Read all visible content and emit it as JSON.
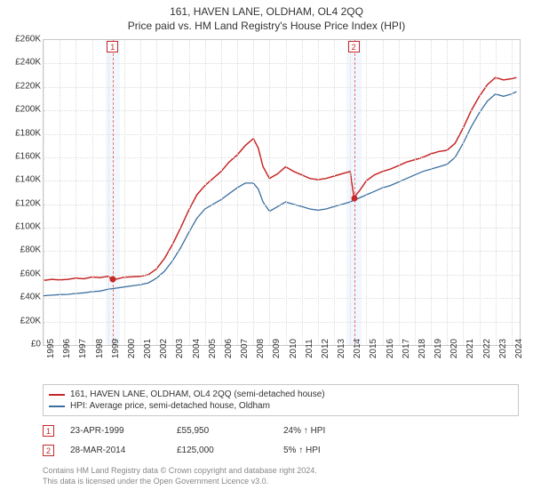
{
  "titles": {
    "main": "161, HAVEN LANE, OLDHAM, OL4 2QQ",
    "sub": "Price paid vs. HM Land Registry's House Price Index (HPI)"
  },
  "chart": {
    "type": "line",
    "background_color": "#ffffff",
    "grid_color": "#dcdcdc",
    "border_color": "#c8c8c8",
    "x": {
      "min": 1995,
      "max": 2024.5,
      "ticks": [
        1995,
        1996,
        1997,
        1998,
        1999,
        2000,
        2001,
        2002,
        2003,
        2004,
        2005,
        2006,
        2007,
        2008,
        2009,
        2010,
        2011,
        2012,
        2013,
        2014,
        2015,
        2016,
        2017,
        2018,
        2019,
        2020,
        2021,
        2022,
        2023,
        2024
      ],
      "label_fontsize": 10
    },
    "y": {
      "min": 0,
      "max": 260000,
      "ticks": [
        0,
        20000,
        40000,
        60000,
        80000,
        100000,
        120000,
        140000,
        160000,
        180000,
        200000,
        220000,
        240000,
        260000
      ],
      "tick_labels": [
        "£0",
        "£20K",
        "£40K",
        "£60K",
        "£80K",
        "£100K",
        "£120K",
        "£140K",
        "£160K",
        "£180K",
        "£200K",
        "£220K",
        "£240K",
        "£260K"
      ],
      "label_fontsize": 10
    },
    "series": [
      {
        "id": "price_paid",
        "label": "161, HAVEN LANE, OLDHAM, OL4 2QQ (semi-detached house)",
        "color": "#c62828",
        "line_width": 1.5,
        "data": [
          [
            1995,
            55000
          ],
          [
            1995.5,
            56000
          ],
          [
            1996,
            55500
          ],
          [
            1996.5,
            56000
          ],
          [
            1997,
            57000
          ],
          [
            1997.5,
            56500
          ],
          [
            1998,
            58000
          ],
          [
            1998.5,
            57500
          ],
          [
            1999,
            58500
          ],
          [
            1999.31,
            55950
          ],
          [
            1999.5,
            56200
          ],
          [
            2000,
            57800
          ],
          [
            2000.5,
            58200
          ],
          [
            2001,
            58500
          ],
          [
            2001.5,
            60000
          ],
          [
            2002,
            65000
          ],
          [
            2002.5,
            74000
          ],
          [
            2003,
            86000
          ],
          [
            2003.5,
            100000
          ],
          [
            2004,
            115000
          ],
          [
            2004.5,
            128000
          ],
          [
            2005,
            136000
          ],
          [
            2005.5,
            142000
          ],
          [
            2006,
            148000
          ],
          [
            2006.5,
            156000
          ],
          [
            2007,
            162000
          ],
          [
            2007.5,
            170000
          ],
          [
            2008,
            176000
          ],
          [
            2008.3,
            168000
          ],
          [
            2008.6,
            152000
          ],
          [
            2009,
            142000
          ],
          [
            2009.5,
            146000
          ],
          [
            2010,
            152000
          ],
          [
            2010.5,
            148000
          ],
          [
            2011,
            145000
          ],
          [
            2011.5,
            142000
          ],
          [
            2012,
            141000
          ],
          [
            2012.5,
            142000
          ],
          [
            2013,
            144000
          ],
          [
            2013.5,
            146000
          ],
          [
            2014,
            148000
          ],
          [
            2014.24,
            125000
          ],
          [
            2014.3,
            127000
          ],
          [
            2014.6,
            132000
          ],
          [
            2015,
            140000
          ],
          [
            2015.5,
            145000
          ],
          [
            2016,
            148000
          ],
          [
            2016.5,
            150000
          ],
          [
            2017,
            153000
          ],
          [
            2017.5,
            156000
          ],
          [
            2018,
            158000
          ],
          [
            2018.5,
            160000
          ],
          [
            2019,
            163000
          ],
          [
            2019.5,
            165000
          ],
          [
            2020,
            166000
          ],
          [
            2020.5,
            172000
          ],
          [
            2021,
            185000
          ],
          [
            2021.5,
            200000
          ],
          [
            2022,
            212000
          ],
          [
            2022.5,
            222000
          ],
          [
            2023,
            228000
          ],
          [
            2023.5,
            226000
          ],
          [
            2024,
            227000
          ],
          [
            2024.3,
            228000
          ]
        ]
      },
      {
        "id": "hpi",
        "label": "HPI: Average price, semi-detached house, Oldham",
        "color": "#3b6fa0",
        "line_width": 1.3,
        "data": [
          [
            1995,
            42000
          ],
          [
            1995.5,
            42500
          ],
          [
            1996,
            43000
          ],
          [
            1996.5,
            43200
          ],
          [
            1997,
            44000
          ],
          [
            1997.5,
            44500
          ],
          [
            1998,
            45500
          ],
          [
            1998.5,
            46000
          ],
          [
            1999,
            47500
          ],
          [
            1999.5,
            48500
          ],
          [
            2000,
            49500
          ],
          [
            2000.5,
            50500
          ],
          [
            2001,
            51500
          ],
          [
            2001.5,
            53000
          ],
          [
            2002,
            57000
          ],
          [
            2002.5,
            63000
          ],
          [
            2003,
            72000
          ],
          [
            2003.5,
            83000
          ],
          [
            2004,
            96000
          ],
          [
            2004.5,
            108000
          ],
          [
            2005,
            116000
          ],
          [
            2005.5,
            120000
          ],
          [
            2006,
            124000
          ],
          [
            2006.5,
            129000
          ],
          [
            2007,
            134000
          ],
          [
            2007.5,
            138000
          ],
          [
            2008,
            138000
          ],
          [
            2008.3,
            133000
          ],
          [
            2008.6,
            122000
          ],
          [
            2009,
            114000
          ],
          [
            2009.5,
            118000
          ],
          [
            2010,
            122000
          ],
          [
            2010.5,
            120000
          ],
          [
            2011,
            118000
          ],
          [
            2011.5,
            116000
          ],
          [
            2012,
            115000
          ],
          [
            2012.5,
            116000
          ],
          [
            2013,
            118000
          ],
          [
            2013.5,
            120000
          ],
          [
            2014,
            122000
          ],
          [
            2014.5,
            125000
          ],
          [
            2015,
            128000
          ],
          [
            2015.5,
            131000
          ],
          [
            2016,
            134000
          ],
          [
            2016.5,
            136000
          ],
          [
            2017,
            139000
          ],
          [
            2017.5,
            142000
          ],
          [
            2018,
            145000
          ],
          [
            2018.5,
            148000
          ],
          [
            2019,
            150000
          ],
          [
            2019.5,
            152000
          ],
          [
            2020,
            154000
          ],
          [
            2020.5,
            160000
          ],
          [
            2021,
            172000
          ],
          [
            2021.5,
            186000
          ],
          [
            2022,
            198000
          ],
          [
            2022.5,
            208000
          ],
          [
            2023,
            214000
          ],
          [
            2023.5,
            212000
          ],
          [
            2024,
            214000
          ],
          [
            2024.3,
            216000
          ]
        ]
      }
    ],
    "markers": [
      {
        "id": "1",
        "x": 1999.31,
        "y": 55950,
        "band_width_years": 0.9,
        "band_color": "#e8f1fb",
        "line_color": "#e57373",
        "box_color": "#c62828"
      },
      {
        "id": "2",
        "x": 2014.24,
        "y": 125000,
        "band_width_years": 0.9,
        "band_color": "#e8f1fb",
        "line_color": "#e57373",
        "box_color": "#c62828"
      }
    ]
  },
  "legend": {
    "border_color": "#c8c8c8",
    "fontsize": 10
  },
  "annotations": [
    {
      "marker": "1",
      "date": "23-APR-1999",
      "price": "£55,950",
      "delta": "24% ↑ HPI"
    },
    {
      "marker": "2",
      "date": "28-MAR-2014",
      "price": "£125,000",
      "delta": "5% ↑ HPI"
    }
  ],
  "disclaimer": {
    "line1": "Contains HM Land Registry data © Crown copyright and database right 2024.",
    "line2": "This data is licensed under the Open Government Licence v3.0."
  }
}
